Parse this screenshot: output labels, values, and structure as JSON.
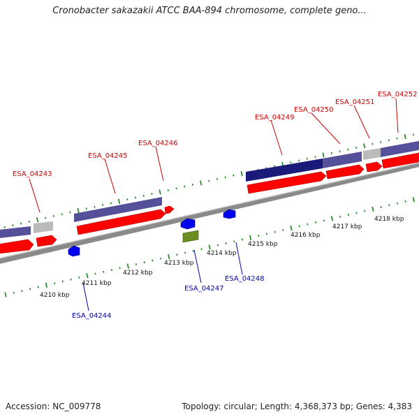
{
  "title": "Cronobacter sakazakii ATCC BAA-894 chromosome, complete geno...",
  "footer": {
    "accession": "Accession: NC_009778",
    "summary": "Topology: circular; Length: 4,368,373 bp; Genes: 4,383"
  },
  "colors": {
    "forward_label": "#cc0000",
    "reverse_label": "#0000aa",
    "tick": "#2a8a2a",
    "backbone": "#8a8a8a"
  },
  "kbp_labels": [
    "4210 kbp",
    "4211 kbp",
    "4212 kbp",
    "4213 kbp",
    "4214 kbp",
    "4215 kbp",
    "4216 kbp",
    "4217 kbp",
    "4218 kbp"
  ],
  "forward_labels": [
    "ESA_04243",
    "ESA_04245",
    "ESA_04246",
    "ESA_04249",
    "ESA_04250",
    "ESA_04251",
    "ESA_04252"
  ],
  "reverse_labels": [
    "ESA_04244",
    "ESA_04247",
    "ESA_04248"
  ]
}
